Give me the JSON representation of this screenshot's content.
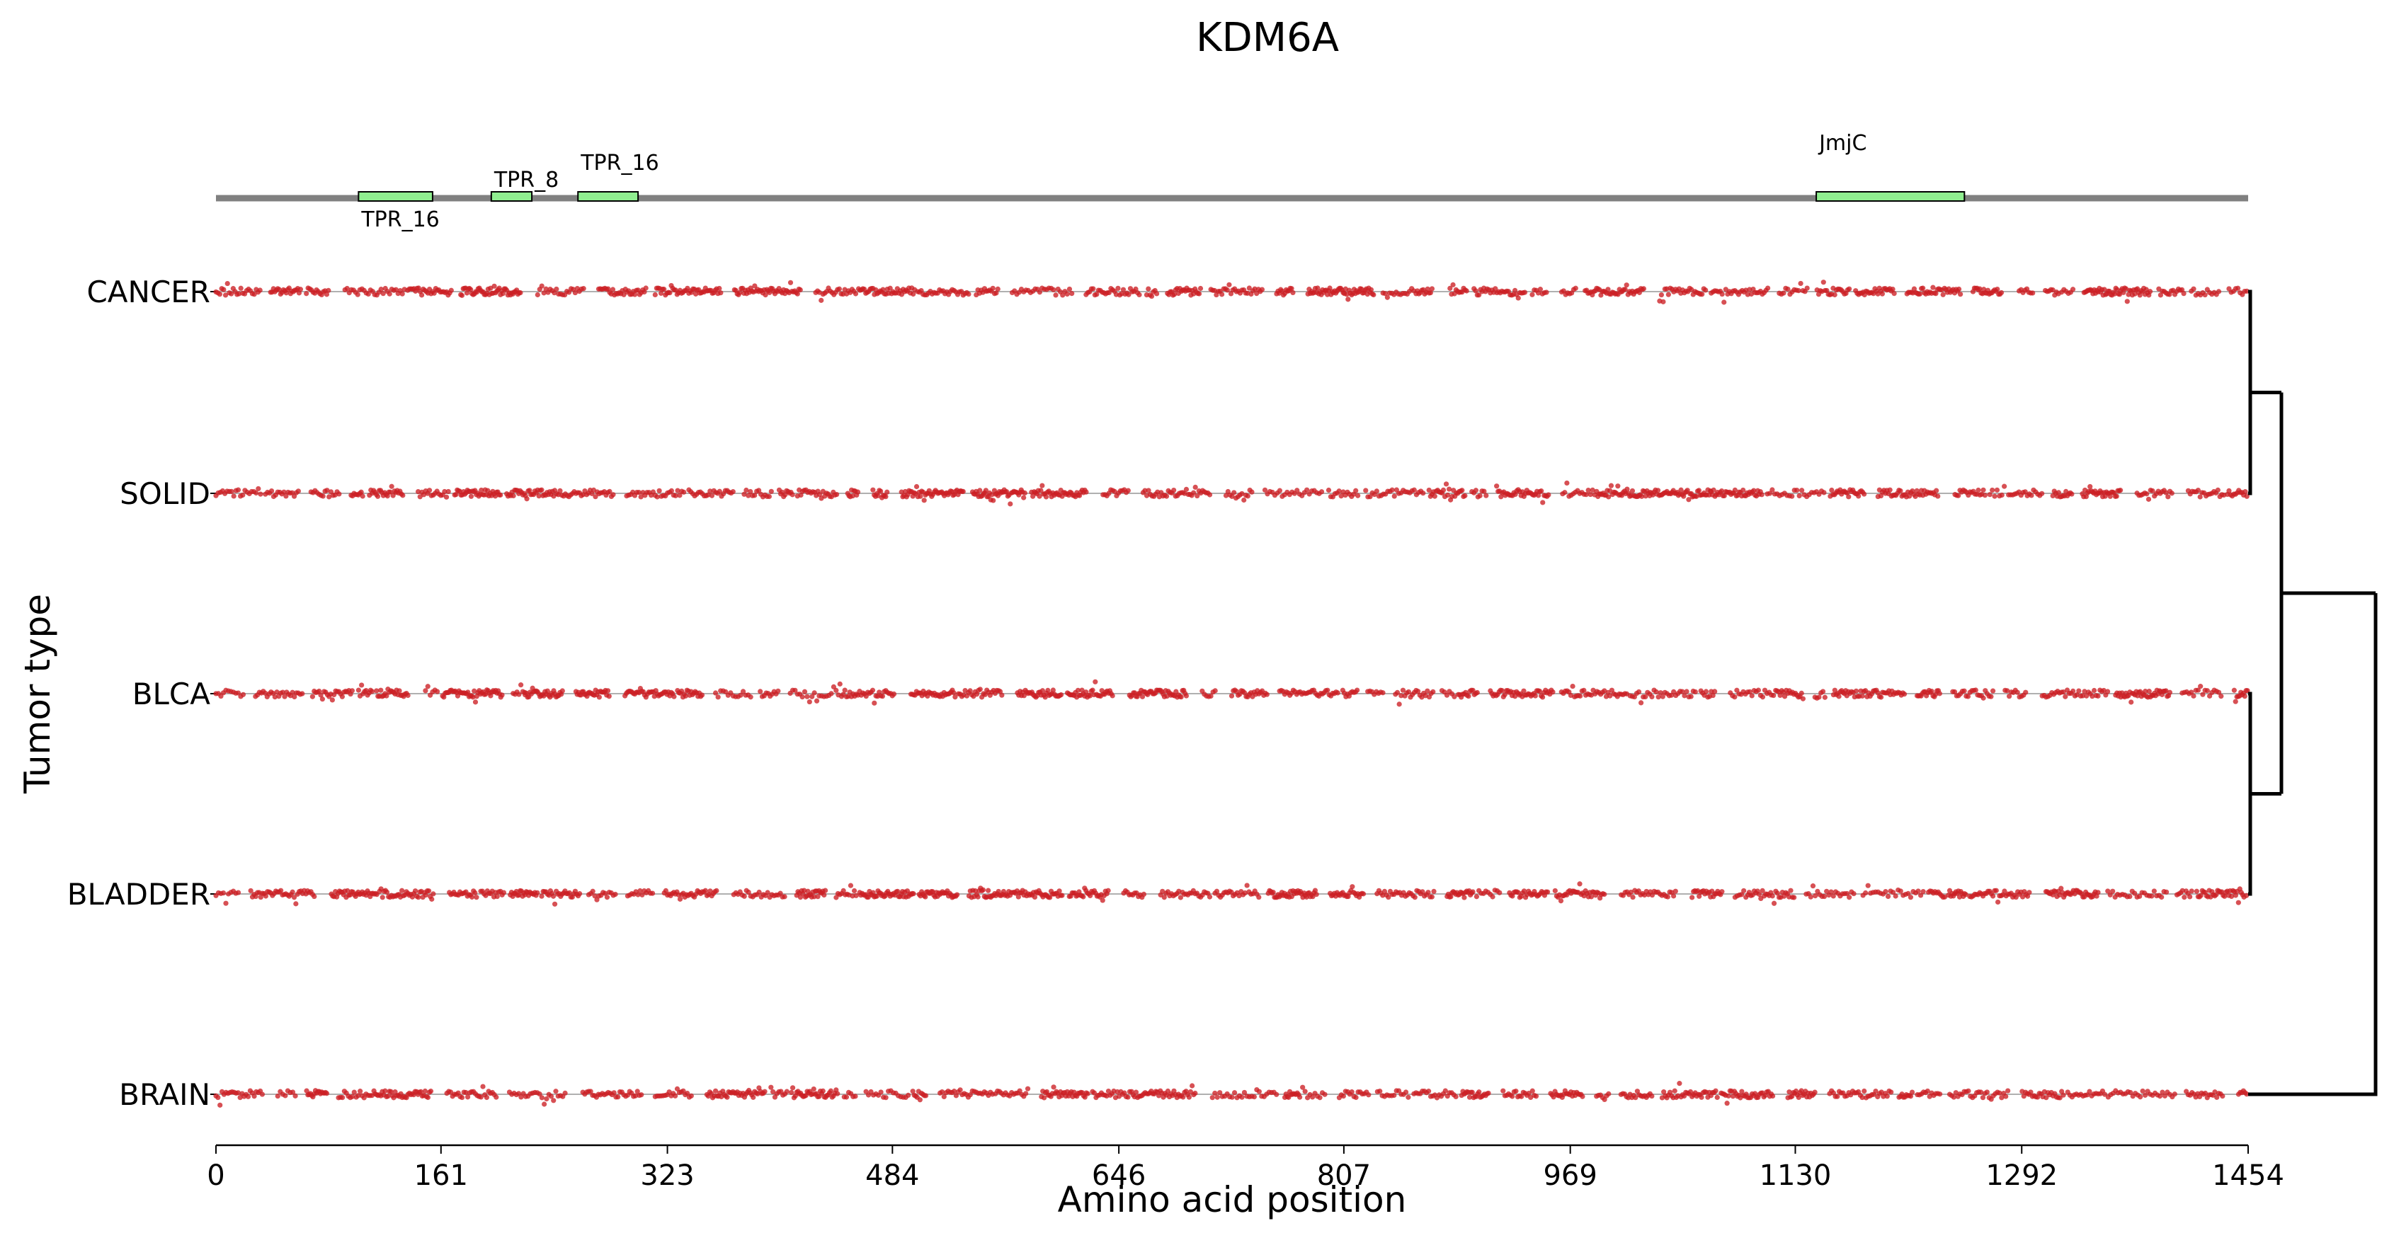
{
  "chart_data": {
    "type": "scatter",
    "title": "KDM6A",
    "xlabel": "Amino acid position",
    "ylabel": "Tumor type",
    "xlim": [
      0,
      1454
    ],
    "x_ticks": [
      "0",
      "161",
      "323",
      "484",
      "646",
      "807",
      "969",
      "1130",
      "1292",
      "1454"
    ],
    "tumor_types": [
      "CANCER",
      "SOLID",
      "BLCA",
      "BLADDER",
      "BRAIN"
    ],
    "protein_domains": [
      {
        "name": "TPR_16",
        "start": 102,
        "end": 155,
        "label_pos": "below"
      },
      {
        "name": "TPR_8",
        "start": 197,
        "end": 226,
        "label_pos": "above"
      },
      {
        "name": "TPR_16",
        "start": 259,
        "end": 302,
        "label_pos": "above"
      },
      {
        "name": "JmjC",
        "start": 1145,
        "end": 1251,
        "label_pos": "above-high"
      }
    ],
    "marker_color": "#cc1f24",
    "domain_color": "#90ee90",
    "backbone_color": "#808080",
    "grid": false,
    "dendrogram": true,
    "series": [
      {
        "name": "CANCER",
        "mutation_density_note": "dense mutations across full length 0–1454"
      },
      {
        "name": "SOLID",
        "mutation_density_note": "dense mutations across full length 0–1454"
      },
      {
        "name": "BLCA",
        "mutation_density_note": "dense mutations across full length 0–1454"
      },
      {
        "name": "BLADDER",
        "mutation_density_note": "dense mutations across full length 0–1454"
      },
      {
        "name": "BRAIN",
        "mutation_density_note": "dense mutations across full length 0–1454"
      }
    ]
  }
}
